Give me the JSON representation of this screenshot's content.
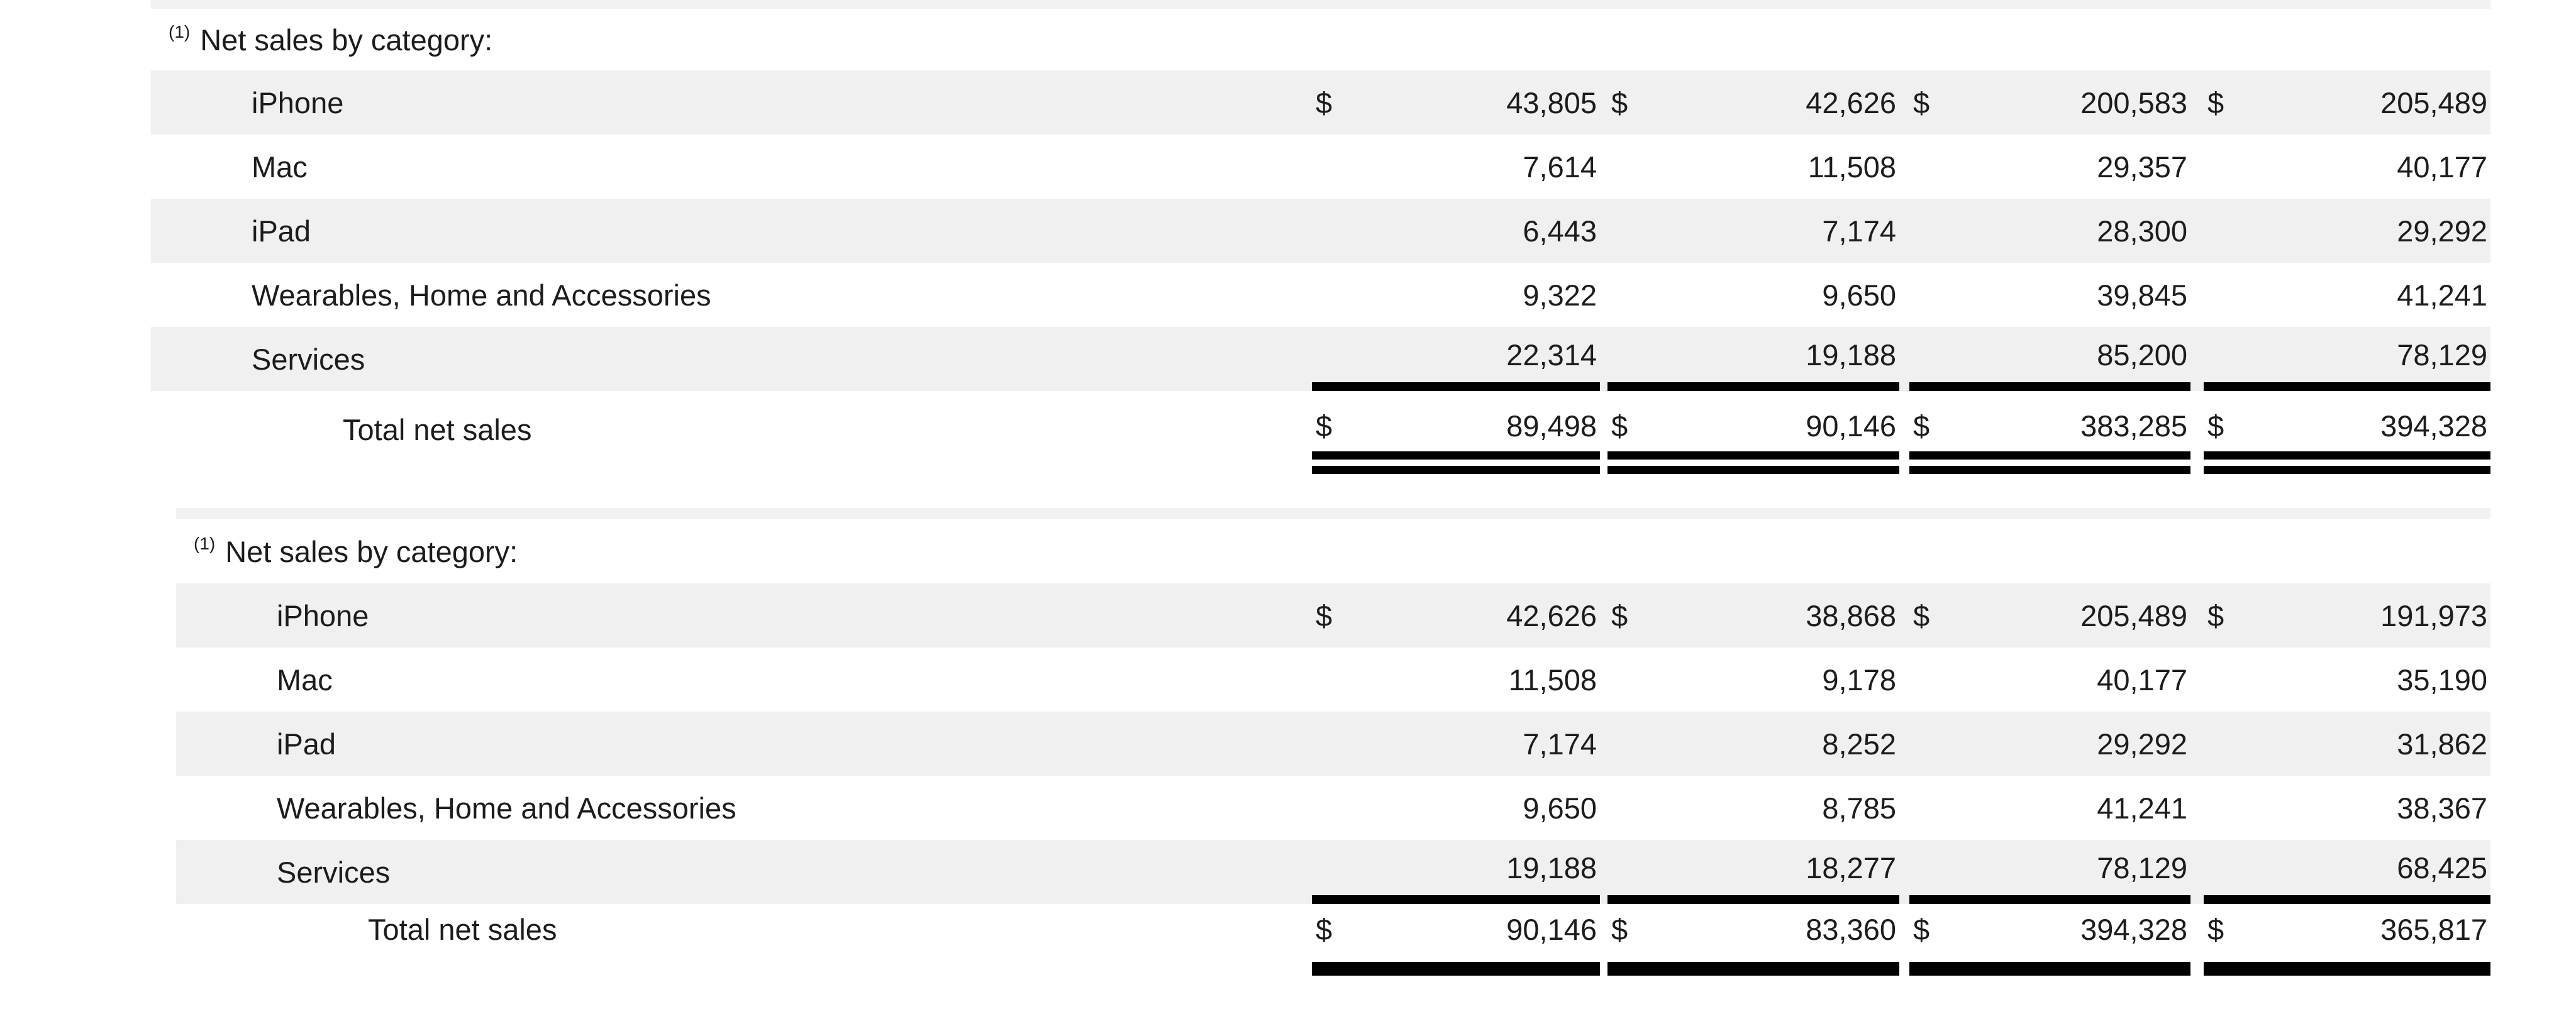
{
  "colors": {
    "background": "#ffffff",
    "stripe": "#f0f0f0",
    "partial_band": "#f2f2f2",
    "text": "#1c1c1c",
    "rule": "#000000"
  },
  "currency_symbol": "$",
  "tables": [
    {
      "heading": {
        "superscript": "(1)",
        "text": "Net sales by category:"
      },
      "rows": [
        {
          "label": "iPhone",
          "values": [
            "43,805",
            "42,626",
            "200,583",
            "205,489"
          ]
        },
        {
          "label": "Mac",
          "values": [
            "7,614",
            "11,508",
            "29,357",
            "40,177"
          ]
        },
        {
          "label": "iPad",
          "values": [
            "6,443",
            "7,174",
            "28,300",
            "29,292"
          ]
        },
        {
          "label": "Wearables, Home and Accessories",
          "values": [
            "9,322",
            "9,650",
            "39,845",
            "41,241"
          ]
        },
        {
          "label": "Services",
          "values": [
            "22,314",
            "19,188",
            "85,200",
            "78,129"
          ]
        }
      ],
      "total": {
        "label": "Total net sales",
        "values": [
          "89,498",
          "90,146",
          "383,285",
          "394,328"
        ]
      }
    },
    {
      "heading": {
        "superscript": "(1)",
        "text": "Net sales by category:"
      },
      "rows": [
        {
          "label": "iPhone",
          "values": [
            "42,626",
            "38,868",
            "205,489",
            "191,973"
          ]
        },
        {
          "label": "Mac",
          "values": [
            "11,508",
            "9,178",
            "40,177",
            "35,190"
          ]
        },
        {
          "label": "iPad",
          "values": [
            "7,174",
            "8,252",
            "29,292",
            "31,862"
          ]
        },
        {
          "label": "Wearables, Home and Accessories",
          "values": [
            "9,650",
            "8,785",
            "41,241",
            "38,367"
          ]
        },
        {
          "label": "Services",
          "values": [
            "19,188",
            "18,277",
            "78,129",
            "68,425"
          ]
        }
      ],
      "total": {
        "label": "Total net sales",
        "values": [
          "90,146",
          "83,360",
          "394,328",
          "365,817"
        ]
      }
    }
  ]
}
